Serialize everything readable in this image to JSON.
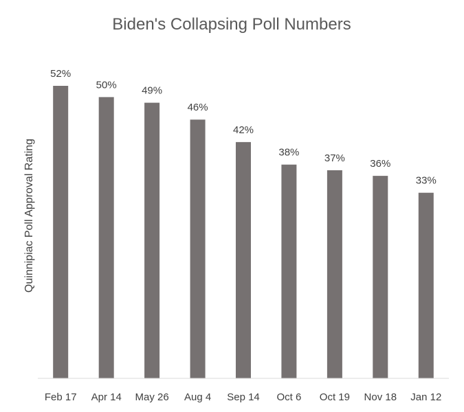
{
  "chart_data": {
    "type": "bar",
    "title": "Biden's Collapsing Poll Numbers",
    "xlabel": "",
    "ylabel": "Quinnipiac Poll Approval Rating",
    "categories": [
      "Feb 17",
      "Apr 14",
      "May 26",
      "Aug 4",
      "Sep 14",
      "Oct 6",
      "Oct 19",
      "Nov 18",
      "Jan 12"
    ],
    "values": [
      52,
      50,
      49,
      46,
      42,
      38,
      37,
      36,
      33
    ],
    "data_labels": [
      "52%",
      "50%",
      "49%",
      "46%",
      "42%",
      "38%",
      "37%",
      "36%",
      "33%"
    ],
    "ylim": [
      0,
      52
    ],
    "grid": false,
    "legend": "none",
    "colors": {
      "bar": "#767171",
      "title": "#595959",
      "text": "#404040",
      "axis_line": "#d9d9d9"
    }
  }
}
